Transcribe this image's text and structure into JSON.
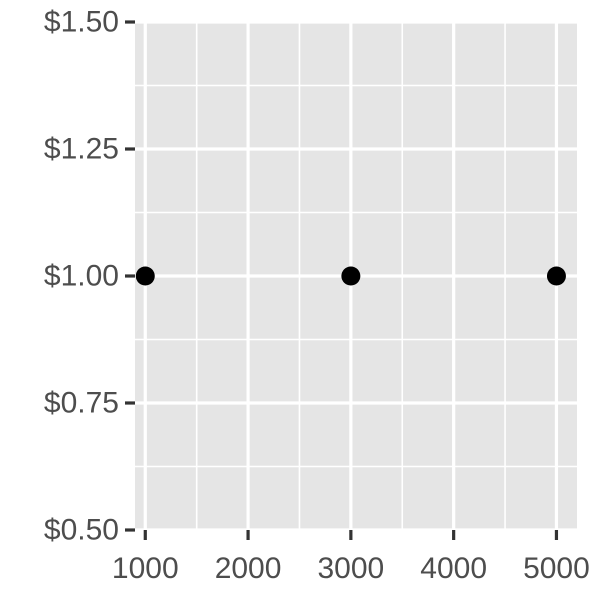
{
  "chart_data": {
    "type": "scatter",
    "title": "",
    "xlabel": "",
    "ylabel": "",
    "xlim": [
      900,
      5200
    ],
    "ylim": [
      0.5,
      1.5
    ],
    "x_ticks": [
      1000,
      2000,
      3000,
      4000,
      5000
    ],
    "x_tick_labels": [
      "1000",
      "2000",
      "3000",
      "4000",
      "5000"
    ],
    "y_ticks": [
      0.5,
      0.75,
      1.0,
      1.25,
      1.5
    ],
    "y_tick_labels": [
      "$0.50",
      "$0.75",
      "$1.00",
      "$1.25",
      "$1.50"
    ],
    "x_minor": [
      1500,
      2500,
      3500,
      4500
    ],
    "y_minor": [
      0.625,
      0.875,
      1.125,
      1.375
    ],
    "grid": true,
    "series": [
      {
        "points": [
          {
            "x": 1000,
            "y": 1.0
          },
          {
            "x": 3000,
            "y": 1.0
          },
          {
            "x": 5000,
            "y": 1.0
          }
        ]
      }
    ],
    "colors": {
      "panel": "#e5e5e5",
      "grid": "#ffffff",
      "point": "#000000",
      "tick": "#333333",
      "text": "#4d4d4d"
    }
  }
}
